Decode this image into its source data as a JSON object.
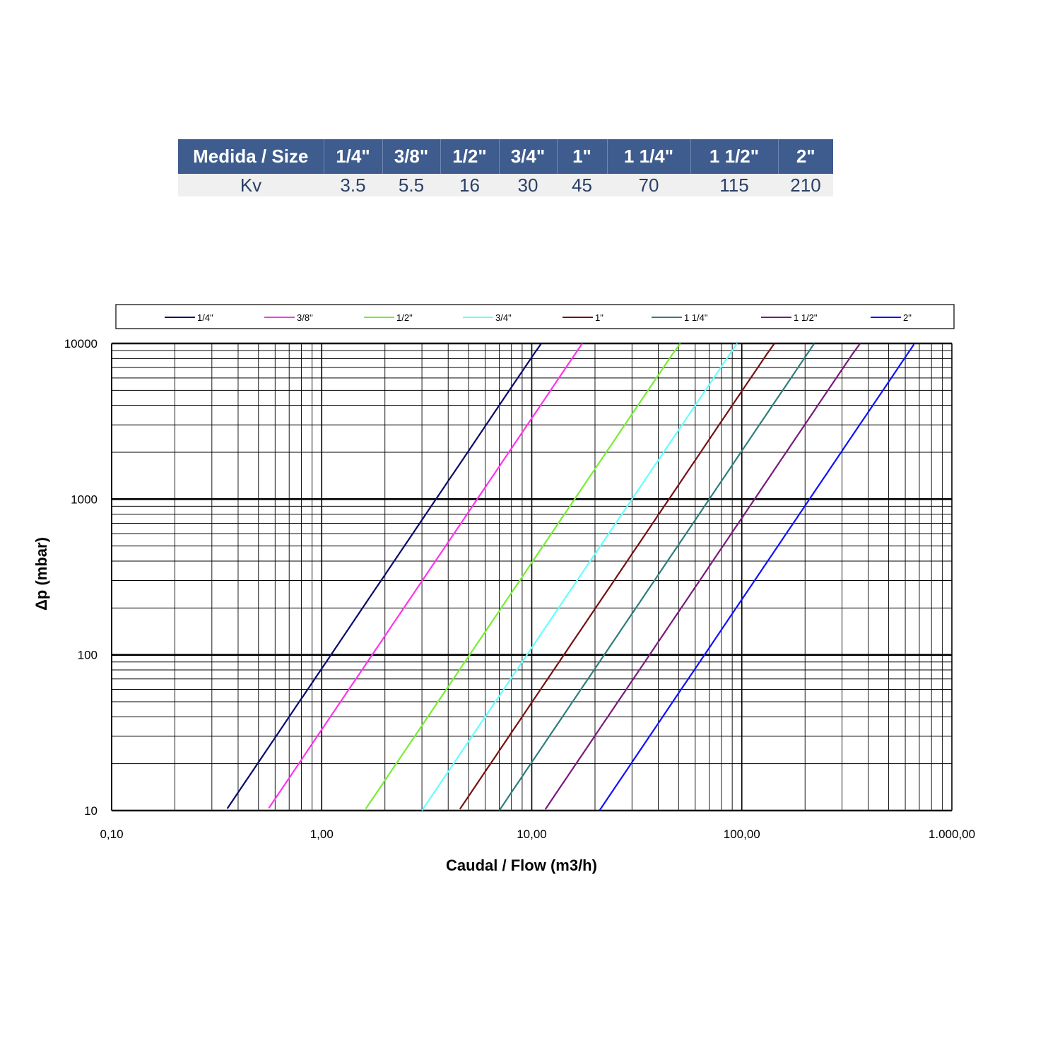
{
  "table": {
    "header_label": "Medida / Size",
    "row_label": "Kv",
    "sizes": [
      "1/4\"",
      "3/8\"",
      "1/2\"",
      "3/4\"",
      "1\"",
      "1 1/4\"",
      "1 1/2\"",
      "2\""
    ],
    "kv": [
      "3.5",
      "5.5",
      "16",
      "30",
      "45",
      "70",
      "115",
      "210"
    ]
  },
  "chart_data": {
    "type": "line",
    "title": "",
    "xlabel": "Caudal / Flow (m3/h)",
    "ylabel": "Δp (mbar)",
    "x_scale": "log",
    "y_scale": "log",
    "xlim": [
      0.1,
      1000
    ],
    "ylim": [
      10,
      10000
    ],
    "x_tick_labels": [
      "0,10",
      "1,00",
      "10,00",
      "100,00",
      "1.000,00"
    ],
    "y_tick_labels": [
      "10",
      "100",
      "1000",
      "10000"
    ],
    "grid": true,
    "legend_position": "top",
    "series": [
      {
        "name": "1/4\"",
        "color": "#0a0a6e",
        "kv": 3.5,
        "x_range": [
          0.355,
          11.1
        ]
      },
      {
        "name": "3/8\"",
        "color": "#ff33ee",
        "kv": 5.5,
        "x_range": [
          0.56,
          17.4
        ]
      },
      {
        "name": "1/2\"",
        "color": "#77ee33",
        "kv": 16,
        "x_range": [
          1.62,
          51
        ]
      },
      {
        "name": "3/4\"",
        "color": "#66ffff",
        "kv": 30,
        "x_range": [
          3.0,
          95
        ]
      },
      {
        "name": "1\"",
        "color": "#7a1010",
        "kv": 45,
        "x_range": [
          4.55,
          143
        ]
      },
      {
        "name": "1 1/4\"",
        "color": "#2e7e7e",
        "kv": 70,
        "x_range": [
          7.0,
          221
        ]
      },
      {
        "name": "1 1/2\"",
        "color": "#7a1a7a",
        "kv": 115,
        "x_range": [
          11.6,
          366
        ]
      },
      {
        "name": "2\"",
        "color": "#1111ff",
        "kv": 210,
        "x_range": [
          21,
          660
        ]
      }
    ]
  }
}
